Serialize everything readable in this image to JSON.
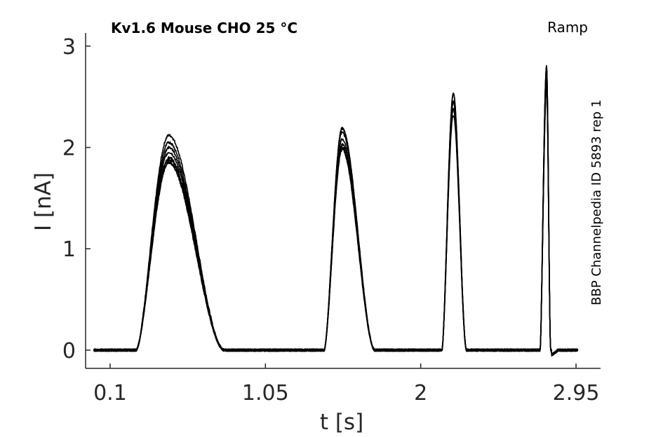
{
  "chart_data": {
    "type": "line",
    "title": "Kv1.6  Mouse  CHO  25 °C",
    "protocol": "Ramp",
    "side_label": "BBP Channelpedia ID 5893 rep 1",
    "xlabel": "t [s]",
    "ylabel": "I [nA]",
    "xlim": [
      -0.05,
      3.1
    ],
    "ylim": [
      -0.18,
      3.13
    ],
    "x_ticks": [
      0.1,
      1.05,
      2,
      2.95
    ],
    "x_tick_labels": [
      "0.1",
      "1.05",
      "2",
      "2.95"
    ],
    "y_ticks": [
      0,
      1,
      2,
      3
    ],
    "y_tick_labels": [
      "0",
      "1",
      "2",
      "3"
    ],
    "grid": false,
    "legend": "none",
    "line_color": "#000000",
    "baseline": 0.0,
    "ramps": [
      {
        "start": 0.26,
        "peak_t": 0.46,
        "end": 0.8,
        "peaks": [
          2.12,
          2.05,
          2.0,
          1.95,
          1.9,
          1.88,
          1.85
        ]
      },
      {
        "start": 1.41,
        "peak_t": 1.52,
        "end": 1.72,
        "peaks": [
          2.19,
          2.15,
          2.08,
          2.03,
          2.0,
          1.98
        ]
      },
      {
        "start": 2.13,
        "peak_t": 2.2,
        "end": 2.28,
        "peaks": [
          2.53,
          2.45,
          2.38,
          2.32
        ]
      },
      {
        "start": 2.73,
        "peak_t": 2.77,
        "end": 2.795,
        "peaks": [
          2.8,
          2.7,
          2.6
        ]
      }
    ],
    "undershoot": {
      "t": 2.8,
      "value": -0.05
    },
    "x_range_data": [
      0.0,
      2.96
    ]
  }
}
